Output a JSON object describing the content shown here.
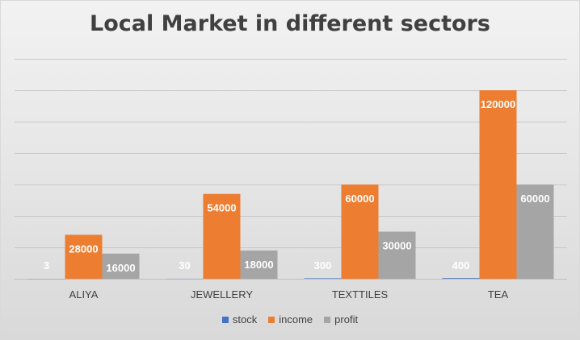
{
  "chart_data": {
    "type": "bar",
    "title": "Local Market in different sectors",
    "categories": [
      "ALIYA",
      "JEWELLERY",
      "TEXTTILES",
      "TEA"
    ],
    "series": [
      {
        "name": "stock",
        "color": "#4472c4",
        "values": [
          3,
          30,
          300,
          400
        ]
      },
      {
        "name": "income",
        "color": "#ed7d31",
        "values": [
          28000,
          54000,
          60000,
          120000
        ]
      },
      {
        "name": "profit",
        "color": "#a5a5a5",
        "values": [
          16000,
          18000,
          30000,
          60000
        ]
      }
    ],
    "ylim": [
      0,
      140000
    ],
    "grid": true,
    "legend_position": "bottom"
  }
}
